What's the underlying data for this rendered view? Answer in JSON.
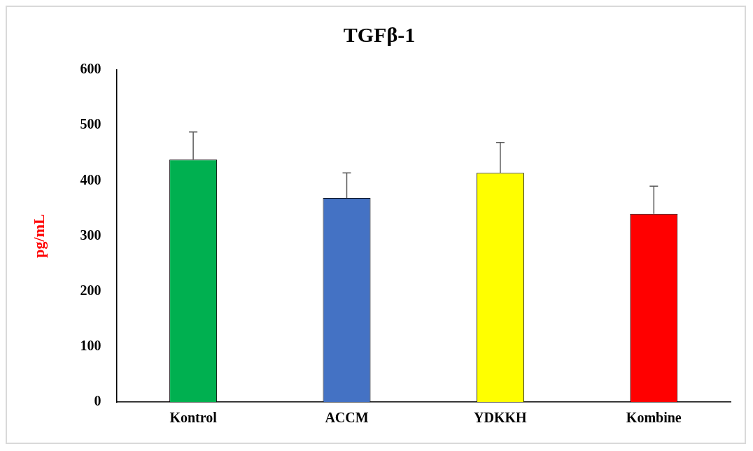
{
  "chart_data": {
    "type": "bar",
    "title": "TGFβ-1",
    "ylabel": "pg/mL",
    "categories": [
      "Kontrol",
      "ACCM",
      "YDKKH",
      "Kombine"
    ],
    "values": [
      438,
      369,
      414,
      340
    ],
    "colors": [
      "#00b050",
      "#4472c4",
      "#ffff00",
      "#ff0000"
    ],
    "errors": [
      [
        438,
        488
      ],
      [
        369,
        414
      ],
      [
        414,
        469
      ],
      [
        340,
        390
      ]
    ],
    "ylim": [
      0,
      600
    ],
    "yticks": [
      0,
      100,
      200,
      300,
      400,
      500,
      600
    ],
    "grid": false,
    "legend": false
  }
}
